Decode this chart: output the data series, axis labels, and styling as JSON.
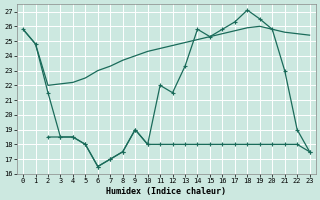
{
  "xlabel": "Humidex (Indice chaleur)",
  "bg_color": "#cce8e0",
  "line_color": "#1a6b5a",
  "grid_color": "#ffffff",
  "grid_minor_color": "#e8d0d0",
  "ylim": [
    16,
    27.5
  ],
  "xlim": [
    -0.5,
    23.5
  ],
  "yticks": [
    16,
    17,
    18,
    19,
    20,
    21,
    22,
    23,
    24,
    25,
    26,
    27
  ],
  "xticks": [
    0,
    1,
    2,
    3,
    4,
    5,
    6,
    7,
    8,
    9,
    10,
    11,
    12,
    13,
    14,
    15,
    16,
    17,
    18,
    19,
    20,
    21,
    22,
    23
  ],
  "line1_x": [
    0,
    1,
    2,
    3,
    4,
    5,
    6,
    7,
    8,
    9,
    10,
    11,
    12,
    13,
    14,
    15,
    16,
    17,
    18,
    19,
    20,
    21,
    22,
    23
  ],
  "line1_y": [
    25.8,
    24.8,
    22.0,
    22.1,
    22.2,
    22.5,
    23.0,
    23.3,
    23.7,
    24.0,
    24.3,
    24.5,
    24.7,
    24.9,
    25.1,
    25.3,
    25.5,
    25.7,
    25.9,
    26.0,
    25.8,
    25.6,
    25.5,
    25.4
  ],
  "line2_x": [
    0,
    1,
    2,
    3,
    4,
    5,
    6,
    7,
    8,
    9,
    10,
    11,
    12,
    13,
    14,
    15,
    16,
    17,
    18,
    19,
    20,
    21,
    22,
    23
  ],
  "line2_y": [
    25.8,
    24.8,
    21.5,
    18.5,
    18.5,
    18.0,
    16.5,
    17.0,
    17.5,
    19.0,
    18.0,
    22.0,
    21.5,
    23.3,
    25.8,
    25.3,
    25.8,
    26.3,
    27.1,
    26.5,
    25.8,
    23.0,
    19.0,
    17.5
  ],
  "line3_x": [
    2,
    3,
    4,
    5,
    6,
    7,
    8,
    9,
    10,
    11,
    12,
    13,
    14,
    15,
    16,
    17,
    18,
    19,
    20,
    21,
    22,
    23
  ],
  "line3_y": [
    18.5,
    18.5,
    18.5,
    18.0,
    16.5,
    17.0,
    17.5,
    19.0,
    18.0,
    18.0,
    18.0,
    18.0,
    18.0,
    18.0,
    18.0,
    18.0,
    18.0,
    18.0,
    18.0,
    18.0,
    18.0,
    17.5
  ]
}
